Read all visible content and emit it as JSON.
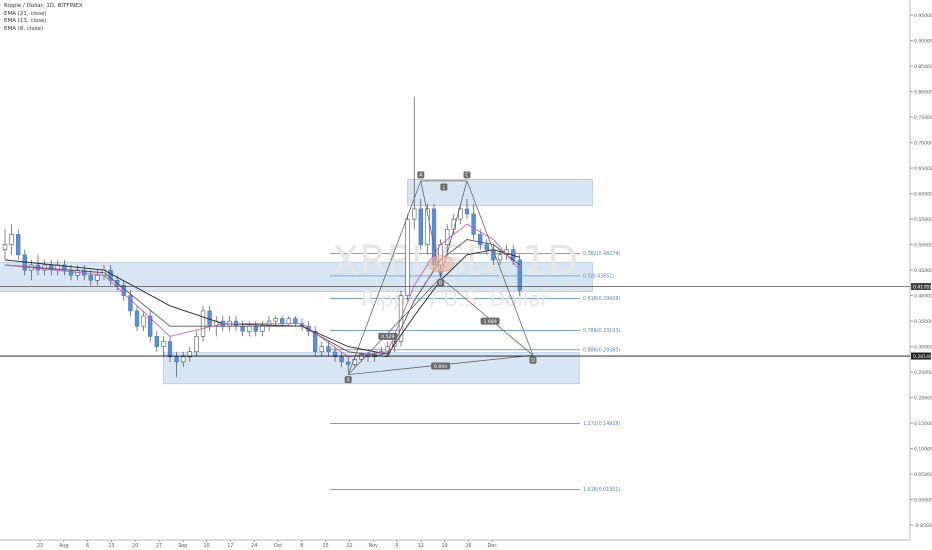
{
  "chart_data": {
    "type": "candlestick",
    "title": "Ripple / Dollar, 1D, BITFINEX",
    "watermark": {
      "symbol": "XRPUSD, 1D",
      "name": "Ripple / U.S. Dollar"
    },
    "indicators": [
      {
        "label": "EMA (21, close)",
        "color": "#222222"
      },
      {
        "label": "EMA (13, close)",
        "color": "#555555"
      },
      {
        "label": "EMA (8, close)",
        "color": "#c060c0"
      }
    ],
    "colors": {
      "up": "#ffffff",
      "down": "#5b8fd6",
      "wick": "#333333",
      "zone": "#c7dcf0",
      "fib": "#4a7fd4",
      "pattern": "#666666"
    },
    "ylim": [
      -0.04,
      0.96
    ],
    "y_ticks": [
      "0.95000",
      "0.90000",
      "0.85000",
      "0.80000",
      "0.75000",
      "0.70000",
      "0.65000",
      "0.60000",
      "0.55000",
      "0.50000",
      "0.45000",
      "0.40000",
      "0.35000",
      "0.30000",
      "0.25000",
      "0.20000",
      "0.15000",
      "0.10000",
      "0.05000",
      "0.00000",
      "-0.05000"
    ],
    "x_ticks": [
      "23",
      "Aug",
      "6",
      "13",
      "20",
      "27",
      "Sep",
      "10",
      "17",
      "24",
      "Oct",
      "8",
      "15",
      "22",
      "Nov",
      "5",
      "12",
      "19",
      "26",
      "Dec"
    ],
    "current_price_label": "0.41781",
    "crosshair_label": "0.28148",
    "candles": [
      [
        0.49,
        0.53,
        0.47,
        0.5
      ],
      [
        0.5,
        0.54,
        0.48,
        0.52
      ],
      [
        0.52,
        0.53,
        0.47,
        0.48
      ],
      [
        0.48,
        0.49,
        0.44,
        0.45
      ],
      [
        0.45,
        0.47,
        0.43,
        0.46
      ],
      [
        0.46,
        0.48,
        0.44,
        0.45
      ],
      [
        0.45,
        0.47,
        0.44,
        0.46
      ],
      [
        0.46,
        0.47,
        0.44,
        0.45
      ],
      [
        0.45,
        0.47,
        0.44,
        0.46
      ],
      [
        0.46,
        0.47,
        0.44,
        0.45
      ],
      [
        0.45,
        0.46,
        0.43,
        0.44
      ],
      [
        0.44,
        0.46,
        0.43,
        0.45
      ],
      [
        0.45,
        0.46,
        0.43,
        0.44
      ],
      [
        0.44,
        0.45,
        0.42,
        0.43
      ],
      [
        0.43,
        0.45,
        0.42,
        0.44
      ],
      [
        0.44,
        0.46,
        0.43,
        0.45
      ],
      [
        0.45,
        0.46,
        0.42,
        0.43
      ],
      [
        0.43,
        0.44,
        0.41,
        0.42
      ],
      [
        0.42,
        0.43,
        0.39,
        0.4
      ],
      [
        0.4,
        0.41,
        0.36,
        0.37
      ],
      [
        0.37,
        0.38,
        0.33,
        0.34
      ],
      [
        0.34,
        0.37,
        0.33,
        0.36
      ],
      [
        0.36,
        0.37,
        0.31,
        0.32
      ],
      [
        0.32,
        0.33,
        0.29,
        0.3
      ],
      [
        0.3,
        0.32,
        0.28,
        0.31
      ],
      [
        0.31,
        0.32,
        0.27,
        0.28
      ],
      [
        0.28,
        0.29,
        0.24,
        0.27
      ],
      [
        0.27,
        0.29,
        0.26,
        0.28
      ],
      [
        0.28,
        0.3,
        0.27,
        0.29
      ],
      [
        0.29,
        0.33,
        0.28,
        0.32
      ],
      [
        0.32,
        0.38,
        0.31,
        0.37
      ],
      [
        0.37,
        0.38,
        0.33,
        0.34
      ],
      [
        0.34,
        0.36,
        0.32,
        0.35
      ],
      [
        0.35,
        0.36,
        0.33,
        0.34
      ],
      [
        0.34,
        0.36,
        0.33,
        0.35
      ],
      [
        0.35,
        0.36,
        0.33,
        0.34
      ],
      [
        0.34,
        0.35,
        0.32,
        0.33
      ],
      [
        0.33,
        0.35,
        0.32,
        0.34
      ],
      [
        0.34,
        0.35,
        0.32,
        0.33
      ],
      [
        0.33,
        0.35,
        0.32,
        0.34
      ],
      [
        0.34,
        0.36,
        0.33,
        0.35
      ],
      [
        0.35,
        0.36,
        0.34,
        0.355
      ],
      [
        0.355,
        0.36,
        0.34,
        0.345
      ],
      [
        0.345,
        0.36,
        0.34,
        0.355
      ],
      [
        0.355,
        0.36,
        0.34,
        0.345
      ],
      [
        0.345,
        0.355,
        0.33,
        0.34
      ],
      [
        0.34,
        0.35,
        0.32,
        0.33
      ],
      [
        0.33,
        0.34,
        0.28,
        0.29
      ],
      [
        0.29,
        0.31,
        0.28,
        0.3
      ],
      [
        0.3,
        0.31,
        0.28,
        0.29
      ],
      [
        0.29,
        0.3,
        0.27,
        0.28
      ],
      [
        0.28,
        0.29,
        0.26,
        0.27
      ],
      [
        0.27,
        0.28,
        0.25,
        0.265
      ],
      [
        0.265,
        0.28,
        0.26,
        0.275
      ],
      [
        0.275,
        0.29,
        0.27,
        0.285
      ],
      [
        0.285,
        0.29,
        0.27,
        0.28
      ],
      [
        0.28,
        0.29,
        0.27,
        0.285
      ],
      [
        0.285,
        0.3,
        0.28,
        0.29
      ],
      [
        0.29,
        0.31,
        0.28,
        0.3
      ],
      [
        0.3,
        0.32,
        0.29,
        0.31
      ],
      [
        0.31,
        0.41,
        0.3,
        0.4
      ],
      [
        0.4,
        0.56,
        0.39,
        0.55
      ],
      [
        0.55,
        0.79,
        0.53,
        0.57
      ],
      [
        0.57,
        0.59,
        0.49,
        0.5
      ],
      [
        0.5,
        0.58,
        0.48,
        0.57
      ],
      [
        0.57,
        0.58,
        0.45,
        0.46
      ],
      [
        0.46,
        0.51,
        0.44,
        0.5
      ],
      [
        0.5,
        0.54,
        0.48,
        0.53
      ],
      [
        0.53,
        0.56,
        0.52,
        0.55
      ],
      [
        0.55,
        0.58,
        0.54,
        0.57
      ],
      [
        0.57,
        0.59,
        0.55,
        0.56
      ],
      [
        0.56,
        0.58,
        0.51,
        0.52
      ],
      [
        0.52,
        0.53,
        0.49,
        0.5
      ],
      [
        0.5,
        0.51,
        0.48,
        0.49
      ],
      [
        0.49,
        0.5,
        0.46,
        0.47
      ],
      [
        0.47,
        0.49,
        0.46,
        0.48
      ],
      [
        0.48,
        0.5,
        0.47,
        0.49
      ],
      [
        0.49,
        0.5,
        0.46,
        0.47
      ],
      [
        0.47,
        0.48,
        0.4,
        0.41
      ]
    ],
    "ema_series": [
      {
        "name": "EMA 21",
        "color": "#222222",
        "points": [
          [
            0,
            0.47
          ],
          [
            15,
            0.45
          ],
          [
            25,
            0.38
          ],
          [
            33,
            0.345
          ],
          [
            45,
            0.34
          ],
          [
            52,
            0.3
          ],
          [
            58,
            0.285
          ],
          [
            62,
            0.36
          ],
          [
            66,
            0.43
          ],
          [
            70,
            0.48
          ],
          [
            74,
            0.49
          ],
          [
            78,
            0.475
          ]
        ]
      },
      {
        "name": "EMA 13",
        "color": "#555555",
        "points": [
          [
            0,
            0.46
          ],
          [
            15,
            0.445
          ],
          [
            25,
            0.34
          ],
          [
            33,
            0.34
          ],
          [
            45,
            0.34
          ],
          [
            52,
            0.29
          ],
          [
            58,
            0.28
          ],
          [
            62,
            0.39
          ],
          [
            66,
            0.47
          ],
          [
            70,
            0.51
          ],
          [
            74,
            0.5
          ],
          [
            78,
            0.46
          ]
        ]
      },
      {
        "name": "EMA 8",
        "color": "#c060c0",
        "points": [
          [
            0,
            0.46
          ],
          [
            15,
            0.44
          ],
          [
            25,
            0.32
          ],
          [
            33,
            0.345
          ],
          [
            45,
            0.345
          ],
          [
            52,
            0.28
          ],
          [
            58,
            0.29
          ],
          [
            62,
            0.42
          ],
          [
            66,
            0.5
          ],
          [
            70,
            0.54
          ],
          [
            74,
            0.51
          ],
          [
            78,
            0.45
          ]
        ]
      }
    ],
    "zones": [
      {
        "x": [
          -1,
          89
        ],
        "y": [
          0.408,
          0.465
        ]
      },
      {
        "x": [
          24,
          87
        ],
        "y": [
          0.227,
          0.288
        ]
      },
      {
        "x": [
          61,
          89
        ],
        "y": [
          0.576,
          0.628
        ]
      }
    ],
    "fib_levels": [
      {
        "value": 0.48274,
        "label": "0.382(0.48274)"
      },
      {
        "value": 0.43851,
        "label": "0.5(0.43851)"
      },
      {
        "value": 0.39429,
        "label": "0.618(0.39429)"
      },
      {
        "value": 0.33133,
        "label": "0.786(0.33133)"
      },
      {
        "value": 0.29385,
        "label": "0.886(0.29385)"
      },
      {
        "value": 0.14918,
        "label": "1.272(0.14918)"
      },
      {
        "value": 0.01951,
        "label": "1.618(0.01951)"
      }
    ],
    "pattern_points": [
      {
        "label": "X",
        "x": 52,
        "y": 0.245
      },
      {
        "label": "A",
        "x": 63,
        "y": 0.625
      },
      {
        "label": "B",
        "x": 66,
        "y": 0.435
      },
      {
        "label": "C",
        "x": 70,
        "y": 0.625
      },
      {
        "label": "D",
        "x": 80,
        "y": 0.283
      }
    ],
    "pattern_labels": [
      {
        "text": "0.529",
        "x": 58,
        "y": 0.32
      },
      {
        "text": "1",
        "x": 66.5,
        "y": 0.613
      },
      {
        "text": "1.689",
        "x": 73.5,
        "y": 0.35
      },
      {
        "text": "0.894",
        "x": 66,
        "y": 0.262
      }
    ]
  }
}
